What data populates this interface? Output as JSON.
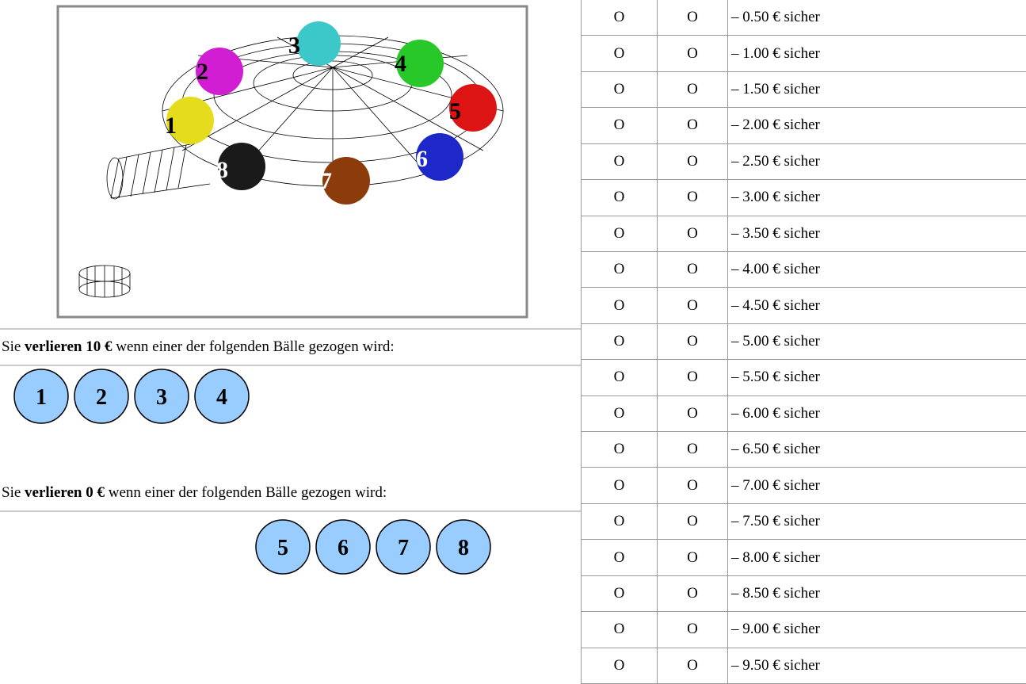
{
  "image_labels": [
    "1",
    "2",
    "3",
    "4",
    "5",
    "6",
    "7",
    "8"
  ],
  "loss_high": {
    "prefix": "Sie",
    "bold": "verlieren 10 €",
    "suffix": "wenn einer der folgenden Bälle gezogen wird:"
  },
  "balls_high": [
    "1",
    "2",
    "3",
    "4"
  ],
  "loss_zero": {
    "prefix": "Sie",
    "bold": "verlieren 0 €",
    "suffix": "wenn einer der folgenden Bälle gezogen wird:"
  },
  "balls_zero": [
    "5",
    "6",
    "7",
    "8"
  ],
  "table": {
    "rows": [
      [
        "O",
        "O",
        "– 0.50 € sicher"
      ],
      [
        "O",
        "O",
        "– 1.00 € sicher"
      ],
      [
        "O",
        "O",
        "– 1.50 € sicher"
      ],
      [
        "O",
        "O",
        "– 2.00 € sicher"
      ],
      [
        "O",
        "O",
        "– 2.50 € sicher"
      ],
      [
        "O",
        "O",
        "– 3.00 € sicher"
      ],
      [
        "O",
        "O",
        "– 3.50 € sicher"
      ],
      [
        "O",
        "O",
        "– 4.00 € sicher"
      ],
      [
        "O",
        "O",
        "– 4.50 € sicher"
      ],
      [
        "O",
        "O",
        "– 5.00 € sicher"
      ],
      [
        "O",
        "O",
        "– 5.50 € sicher"
      ],
      [
        "O",
        "O",
        "– 6.00 € sicher"
      ],
      [
        "O",
        "O",
        "– 6.50 € sicher"
      ],
      [
        "O",
        "O",
        "– 7.00 € sicher"
      ],
      [
        "O",
        "O",
        "– 7.50 € sicher"
      ],
      [
        "O",
        "O",
        "– 8.00 € sicher"
      ],
      [
        "O",
        "O",
        "– 8.50 € sicher"
      ],
      [
        "O",
        "O",
        "– 9.00 € sicher"
      ],
      [
        "O",
        "O",
        "– 9.50 € sicher"
      ]
    ]
  }
}
